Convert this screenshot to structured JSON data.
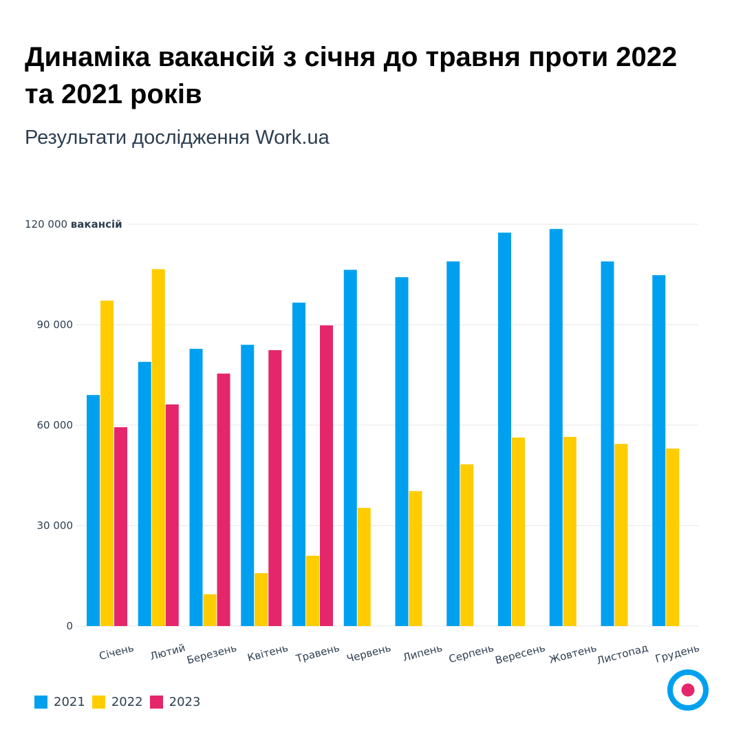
{
  "header": {
    "title": "Динаміка вакансій з січня до травня проти 2022 та 2021 років",
    "subtitle": "Результати дослідження Work.ua"
  },
  "colors": {
    "2021": "#00a0f0",
    "2022": "#ffcc00",
    "2023": "#e5266b",
    "grid": "#efefef",
    "text": "#2c3e50"
  },
  "chart_data": {
    "type": "bar",
    "title": "Динаміка вакансій з січня до травня проти 2022 та 2021 років",
    "subtitle": "Результати дослідження Work.ua",
    "xlabel": "",
    "ylabel": "вакансій",
    "ylim": [
      0,
      120000
    ],
    "yticks": [
      0,
      30000,
      60000,
      90000,
      120000
    ],
    "ytick_labels": [
      "0",
      "30 000",
      "60 000",
      "90 000",
      "120 000"
    ],
    "y_unit_label": "вакансій",
    "grid": true,
    "legend_position": "bottom-left",
    "categories": [
      "Січень",
      "Лютий",
      "Березень",
      "Квітень",
      "Травень",
      "Червень",
      "Липень",
      "Серпень",
      "Вересень",
      "Жовтень",
      "Листопад",
      "Грудень"
    ],
    "series": [
      {
        "name": "2021",
        "color": "#00a0f0",
        "values": [
          69000,
          78900,
          82800,
          84000,
          96600,
          106400,
          104200,
          108900,
          117500,
          118600,
          108900,
          104800
        ]
      },
      {
        "name": "2022",
        "color": "#ffcc00",
        "values": [
          97200,
          106600,
          9500,
          15800,
          21000,
          35300,
          40300,
          48300,
          56300,
          56500,
          54400,
          53000
        ]
      },
      {
        "name": "2023",
        "color": "#e5266b",
        "values": [
          59400,
          66200,
          75400,
          82400,
          89800,
          null,
          null,
          null,
          null,
          null,
          null,
          null
        ]
      }
    ]
  },
  "legend": {
    "items": [
      {
        "label": "2021",
        "color": "#00a0f0"
      },
      {
        "label": "2022",
        "color": "#ffcc00"
      },
      {
        "label": "2023",
        "color": "#e5266b"
      }
    ]
  },
  "logo": {
    "icon": "target-logo-icon"
  }
}
